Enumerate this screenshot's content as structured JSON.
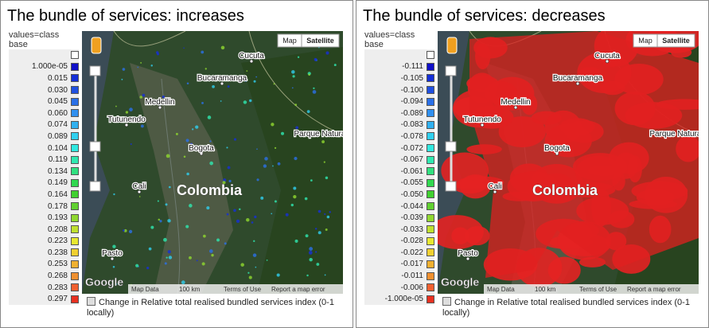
{
  "panels": [
    {
      "title": "The bundle of services: increases",
      "legend": {
        "header": "values=class base",
        "items": [
          {
            "label": "1.000e-05",
            "color": "#1010c8"
          },
          {
            "label": "0.015",
            "color": "#1530d8"
          },
          {
            "label": "0.030",
            "color": "#2050e0"
          },
          {
            "label": "0.045",
            "color": "#2a70e8"
          },
          {
            "label": "0.060",
            "color": "#3090f0"
          },
          {
            "label": "0.074",
            "color": "#30b0f0"
          },
          {
            "label": "0.089",
            "color": "#30d0f0"
          },
          {
            "label": "0.104",
            "color": "#30e8e0"
          },
          {
            "label": "0.119",
            "color": "#30e8b0"
          },
          {
            "label": "0.134",
            "color": "#30e080"
          },
          {
            "label": "0.149",
            "color": "#30d850"
          },
          {
            "label": "0.164",
            "color": "#40d030"
          },
          {
            "label": "0.178",
            "color": "#60d030"
          },
          {
            "label": "0.193",
            "color": "#90d830"
          },
          {
            "label": "0.208",
            "color": "#c0e030"
          },
          {
            "label": "0.223",
            "color": "#e8e830"
          },
          {
            "label": "0.238",
            "color": "#f0d030"
          },
          {
            "label": "0.253",
            "color": "#f0b030"
          },
          {
            "label": "0.268",
            "color": "#f09030"
          },
          {
            "label": "0.283",
            "color": "#f06030"
          },
          {
            "label": "0.297",
            "color": "#e83020"
          }
        ]
      },
      "map": {
        "overlay": "increase",
        "buttons": [
          "Map",
          "Satellite"
        ],
        "cities": [
          "Cucuta",
          "Bucaramanga",
          "Medellin",
          "Tutunendo",
          "Bogota",
          "Cali",
          "Pasto",
          "Colombia",
          "Parque Natural"
        ],
        "logo": "Google",
        "footer": [
          "Map Data",
          "100 km",
          "Terms of Use",
          "Report a map error"
        ]
      },
      "caption": "Change in Relative total realised bundled services index (0-1 locally)"
    },
    {
      "title": "The bundle of services: decreases",
      "legend": {
        "header": "values=class base",
        "items": [
          {
            "label": "-0.111",
            "color": "#1010c8"
          },
          {
            "label": "-0.105",
            "color": "#1530d8"
          },
          {
            "label": "-0.100",
            "color": "#2050e0"
          },
          {
            "label": "-0.094",
            "color": "#2a70e8"
          },
          {
            "label": "-0.089",
            "color": "#3090f0"
          },
          {
            "label": "-0.083",
            "color": "#30b0f0"
          },
          {
            "label": "-0.078",
            "color": "#30d0f0"
          },
          {
            "label": "-0.072",
            "color": "#30e8e0"
          },
          {
            "label": "-0.067",
            "color": "#30e8b0"
          },
          {
            "label": "-0.061",
            "color": "#30e080"
          },
          {
            "label": "-0.055",
            "color": "#30d850"
          },
          {
            "label": "-0.050",
            "color": "#40d030"
          },
          {
            "label": "-0.044",
            "color": "#60d030"
          },
          {
            "label": "-0.039",
            "color": "#90d830"
          },
          {
            "label": "-0.033",
            "color": "#c0e030"
          },
          {
            "label": "-0.028",
            "color": "#e8e830"
          },
          {
            "label": "-0.022",
            "color": "#f0d030"
          },
          {
            "label": "-0.017",
            "color": "#f0b030"
          },
          {
            "label": "-0.011",
            "color": "#f09030"
          },
          {
            "label": "-0.006",
            "color": "#f06030"
          },
          {
            "label": "-1.000e-05",
            "color": "#e83020"
          }
        ]
      },
      "map": {
        "overlay": "decrease",
        "buttons": [
          "Map",
          "Satellite"
        ],
        "cities": [
          "Cucuta",
          "Bucaramanga",
          "Medellin",
          "Tutunendo",
          "Bogota",
          "Cali",
          "Pasto",
          "Colombia",
          "Parque Natural"
        ],
        "logo": "Google",
        "footer": [
          "Map Data",
          "100 km",
          "Terms of Use",
          "Report a map error"
        ]
      },
      "caption": "Change in Relative total realised bundled services index (0-1 locally)"
    }
  ]
}
